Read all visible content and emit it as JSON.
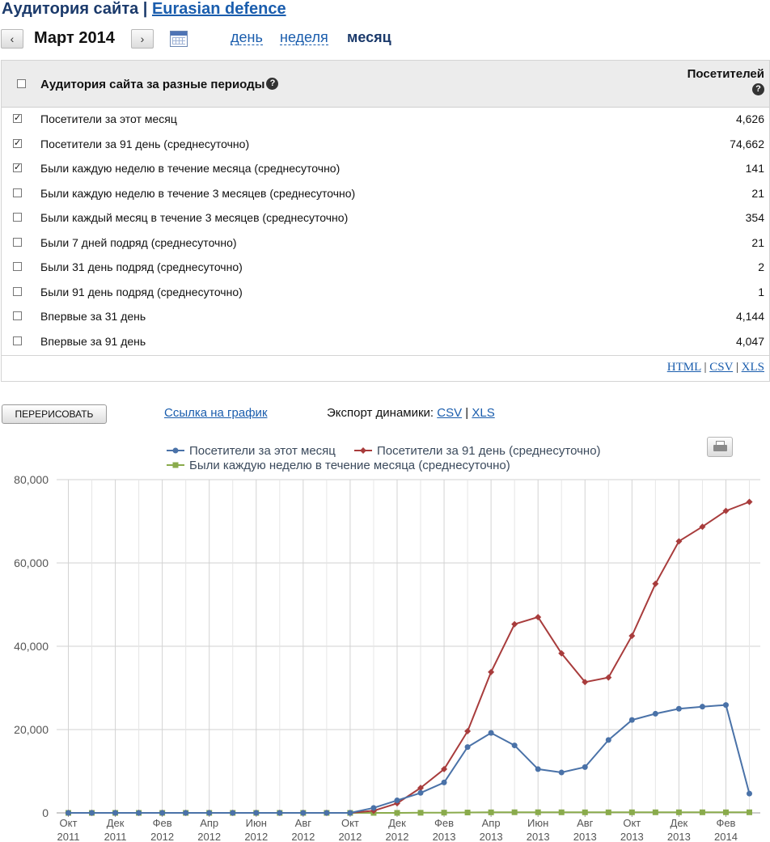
{
  "header": {
    "title_prefix": "Аудитория сайта | ",
    "site_name": "Eurasian defence"
  },
  "period": {
    "prev_glyph": "‹",
    "next_glyph": "›",
    "label": "Март 2014",
    "links": [
      {
        "label": "день",
        "active": false
      },
      {
        "label": "неделя",
        "active": false
      },
      {
        "label": "месяц",
        "active": true
      }
    ]
  },
  "table": {
    "header_title": "Аудитория сайта за разные периоды",
    "header_column": "Посетителей",
    "help_glyph": "?",
    "rows": [
      {
        "label": "Посетители за этот месяц",
        "value": "4,626",
        "checked": true
      },
      {
        "label": "Посетители за 91 день (среднесуточно)",
        "value": "74,662",
        "checked": true
      },
      {
        "label": "Были каждую неделю в течение месяца (среднесуточно)",
        "value": "141",
        "checked": true
      },
      {
        "label": "Были каждую неделю в течение 3 месяцев (среднесуточно)",
        "value": "21",
        "checked": false
      },
      {
        "label": "Были каждый месяц в течение 3 месяцев (среднесуточно)",
        "value": "354",
        "checked": false
      },
      {
        "label": "Были 7 дней подряд (среднесуточно)",
        "value": "21",
        "checked": false
      },
      {
        "label": "Были 31 день подряд (среднесуточно)",
        "value": "2",
        "checked": false
      },
      {
        "label": "Были 91 день подряд (среднесуточно)",
        "value": "1",
        "checked": false
      },
      {
        "label": "Впервые за 31 день",
        "value": "4,144",
        "checked": false
      },
      {
        "label": "Впервые за 91 день",
        "value": "4,047",
        "checked": false
      }
    ],
    "export": {
      "html": "HTML",
      "csv": "CSV",
      "xls": "XLS",
      "sep": " | "
    }
  },
  "controls": {
    "redraw_label": "ПЕРЕРИСОВАТЬ",
    "chart_link_label": "Ссылка на график",
    "export_label": "Экспорт динамики: ",
    "export_csv": "CSV",
    "export_sep": " | ",
    "export_xls": "XLS"
  },
  "chart_data": {
    "type": "line",
    "title": "",
    "xlabel": "",
    "ylabel": "",
    "ylim": [
      0,
      80000
    ],
    "yticks": [
      0,
      20000,
      40000,
      60000,
      80000
    ],
    "ytick_labels": [
      "0",
      "20,000",
      "40,000",
      "60,000",
      "80,000"
    ],
    "grid": true,
    "legend_position": "top",
    "x": [
      "2011-10",
      "2011-11",
      "2011-12",
      "2012-01",
      "2012-02",
      "2012-03",
      "2012-04",
      "2012-05",
      "2012-06",
      "2012-07",
      "2012-08",
      "2012-09",
      "2012-10",
      "2012-11",
      "2012-12",
      "2013-01",
      "2013-02",
      "2013-03",
      "2013-04",
      "2013-05",
      "2013-06",
      "2013-07",
      "2013-08",
      "2013-09",
      "2013-10",
      "2013-11",
      "2013-12",
      "2014-01",
      "2014-02",
      "2014-03"
    ],
    "xtick_labels": [
      {
        "month": "Окт",
        "year": "2011"
      },
      {
        "month": "Дек",
        "year": "2011"
      },
      {
        "month": "Фев",
        "year": "2012"
      },
      {
        "month": "Апр",
        "year": "2012"
      },
      {
        "month": "Июн",
        "year": "2012"
      },
      {
        "month": "Авг",
        "year": "2012"
      },
      {
        "month": "Окт",
        "year": "2012"
      },
      {
        "month": "Дек",
        "year": "2012"
      },
      {
        "month": "Фев",
        "year": "2013"
      },
      {
        "month": "Апр",
        "year": "2013"
      },
      {
        "month": "Июн",
        "year": "2013"
      },
      {
        "month": "Авг",
        "year": "2013"
      },
      {
        "month": "Окт",
        "year": "2013"
      },
      {
        "month": "Дек",
        "year": "2013"
      },
      {
        "month": "Фев",
        "year": "2014"
      }
    ],
    "series": [
      {
        "name": "Посетители за этот месяц",
        "color": "#4a72a8",
        "marker": "circle",
        "values": [
          0,
          0,
          0,
          0,
          0,
          0,
          0,
          0,
          0,
          0,
          0,
          0,
          0,
          1200,
          3000,
          4800,
          7300,
          15800,
          19200,
          16200,
          10500,
          9700,
          11000,
          17500,
          22300,
          23800,
          25000,
          25500,
          25900,
          4626
        ]
      },
      {
        "name": "Посетители за 91 день (среднесуточно)",
        "color": "#a83c3c",
        "marker": "diamond",
        "values": [
          0,
          0,
          0,
          0,
          0,
          0,
          0,
          0,
          0,
          0,
          0,
          0,
          0,
          500,
          2300,
          6000,
          10500,
          19600,
          33800,
          45300,
          47000,
          38300,
          31400,
          32500,
          42500,
          55000,
          65200,
          68700,
          72500,
          74662
        ]
      },
      {
        "name": "Были каждую неделю в течение месяца (среднесуточно)",
        "color": "#8aab4c",
        "marker": "square",
        "values": [
          0,
          0,
          0,
          0,
          0,
          0,
          0,
          0,
          0,
          0,
          0,
          0,
          0,
          0,
          0,
          30,
          60,
          90,
          130,
          150,
          150,
          140,
          130,
          130,
          140,
          140,
          140,
          140,
          140,
          141
        ]
      }
    ]
  }
}
